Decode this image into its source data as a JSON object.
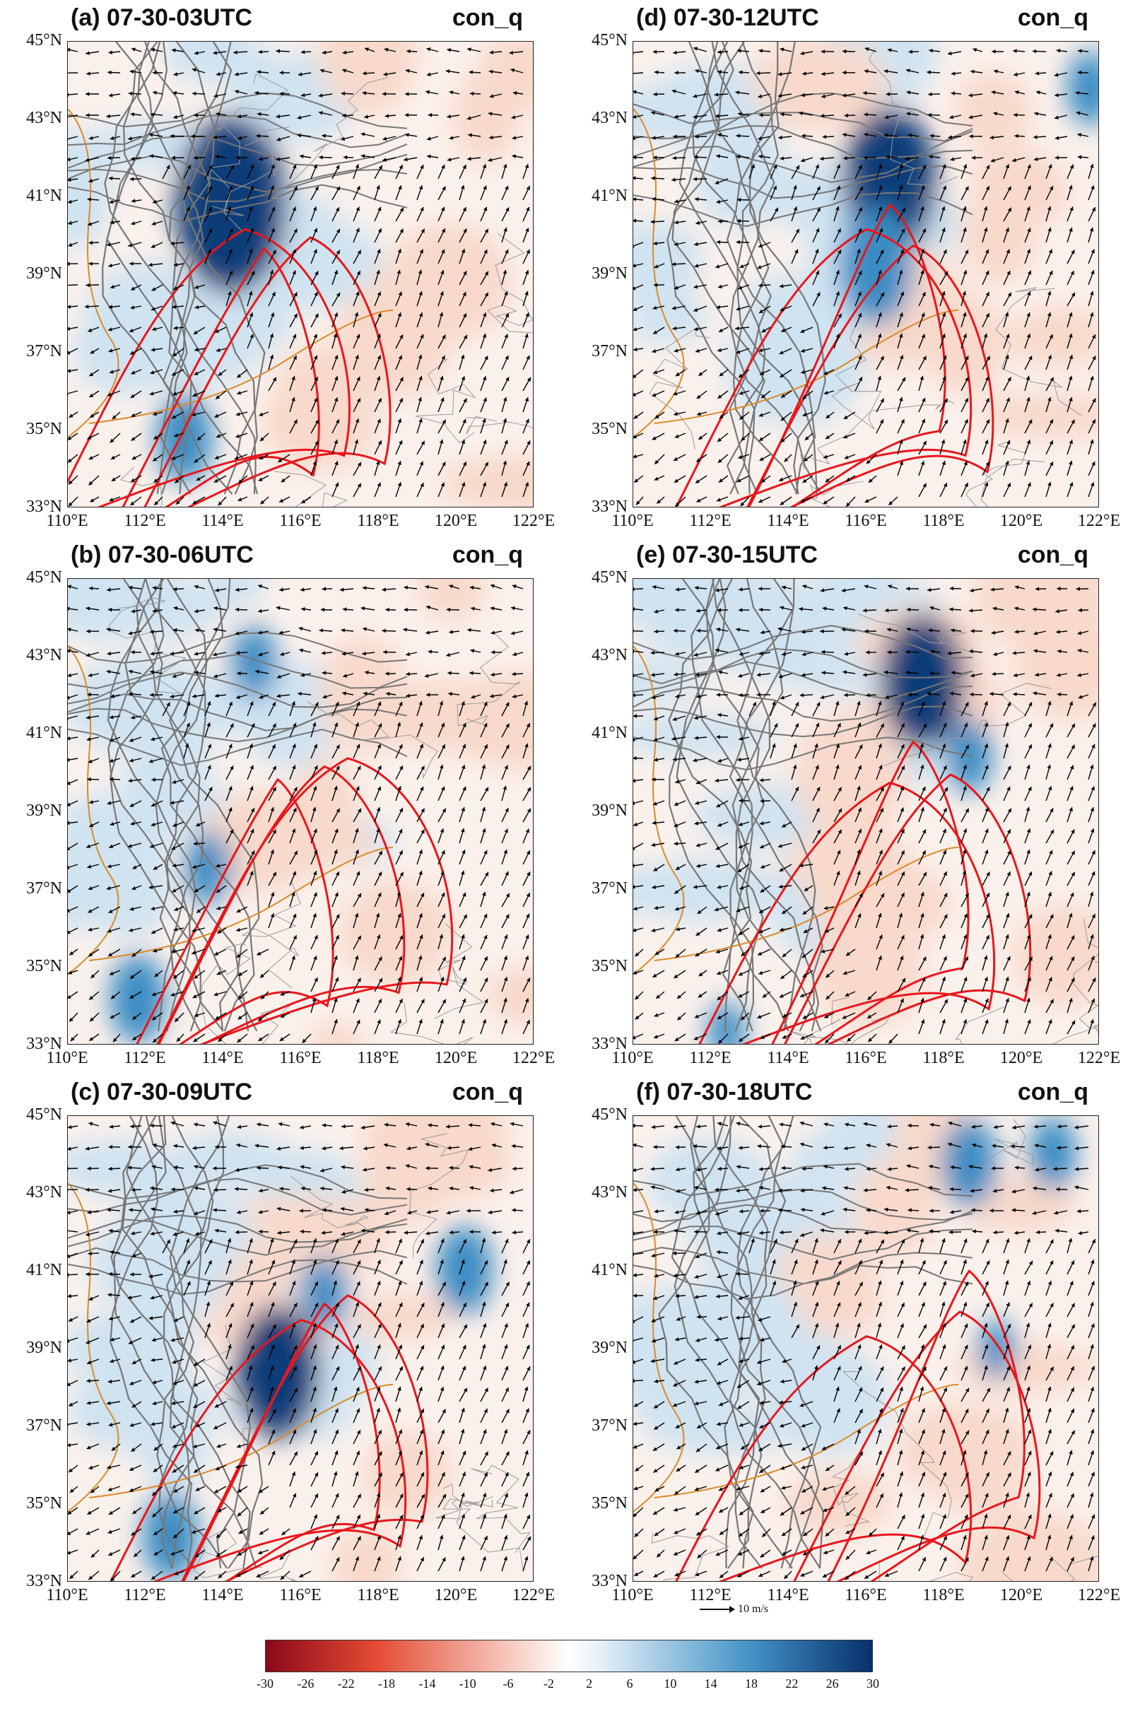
{
  "panels": [
    {
      "label": "(a) 07-30-03UTC",
      "var": "con_q",
      "seed": 3,
      "blue": [
        [
          0.35,
          0.35,
          0.12
        ],
        [
          0.25,
          0.85,
          0.06
        ]
      ],
      "red": [
        [
          0.42,
          0.62
        ],
        [
          0.52,
          0.55
        ],
        [
          0.38,
          0.5
        ]
      ]
    },
    {
      "label": "(d) 07-30-12UTC",
      "var": "con_q",
      "seed": 12,
      "blue": [
        [
          0.55,
          0.3,
          0.1
        ],
        [
          0.52,
          0.48,
          0.08
        ],
        [
          0.98,
          0.1,
          0.05
        ]
      ],
      "red": [
        [
          0.55,
          0.35
        ],
        [
          0.6,
          0.6
        ],
        [
          0.5,
          0.5
        ]
      ]
    },
    {
      "label": "(b) 07-30-06UTC",
      "var": "con_q",
      "seed": 6,
      "blue": [
        [
          0.15,
          0.9,
          0.06
        ],
        [
          0.3,
          0.62,
          0.05
        ],
        [
          0.4,
          0.18,
          0.05
        ]
      ],
      "red": [
        [
          0.45,
          0.58
        ],
        [
          0.55,
          0.5
        ],
        [
          0.6,
          0.45
        ]
      ]
    },
    {
      "label": "(e) 07-30-15UTC",
      "var": "con_q",
      "seed": 15,
      "blue": [
        [
          0.62,
          0.22,
          0.09
        ],
        [
          0.72,
          0.38,
          0.05
        ],
        [
          0.2,
          0.97,
          0.04
        ]
      ],
      "red": [
        [
          0.6,
          0.35
        ],
        [
          0.68,
          0.55
        ],
        [
          0.55,
          0.6
        ]
      ]
    },
    {
      "label": "(c) 07-30-09UTC",
      "var": "con_q",
      "seed": 9,
      "blue": [
        [
          0.45,
          0.55,
          0.09
        ],
        [
          0.55,
          0.38,
          0.05
        ],
        [
          0.22,
          0.9,
          0.06
        ],
        [
          0.85,
          0.33,
          0.06
        ]
      ],
      "red": [
        [
          0.55,
          0.5
        ],
        [
          0.6,
          0.45
        ],
        [
          0.5,
          0.6
        ]
      ]
    },
    {
      "label": "(f) 07-30-18UTC",
      "var": "con_q",
      "seed": 18,
      "blue": [
        [
          0.72,
          0.1,
          0.06
        ],
        [
          0.9,
          0.08,
          0.05
        ],
        [
          0.78,
          0.5,
          0.04
        ]
      ],
      "red": [
        [
          0.72,
          0.3
        ],
        [
          0.7,
          0.55
        ],
        [
          0.5,
          0.7
        ]
      ]
    }
  ],
  "axes": {
    "lat_ticks": [
      "45°N",
      "43°N",
      "41°N",
      "39°N",
      "37°N",
      "35°N",
      "33°N"
    ],
    "lon_ticks": [
      "110°E",
      "112°E",
      "114°E",
      "116°E",
      "118°E",
      "120°E",
      "122°E"
    ]
  },
  "legend": {
    "ref_vector": "10 m/s",
    "colorbar_ticks": [
      "-30",
      "-26",
      "-22",
      "-18",
      "-14",
      "-10",
      "-6",
      "-2",
      "2",
      "6",
      "10",
      "14",
      "18",
      "22",
      "26",
      "30"
    ],
    "colors": {
      "neg_dark": "#8b0a1a",
      "neg_light": "#fbe4dc",
      "pos_light": "#e6f0f8",
      "pos_dark": "#08306b"
    }
  },
  "colors": {
    "terrain_contour": "#777777",
    "front_contour": "#e8161c",
    "border": "#d98a2b",
    "wind": "#000000"
  }
}
